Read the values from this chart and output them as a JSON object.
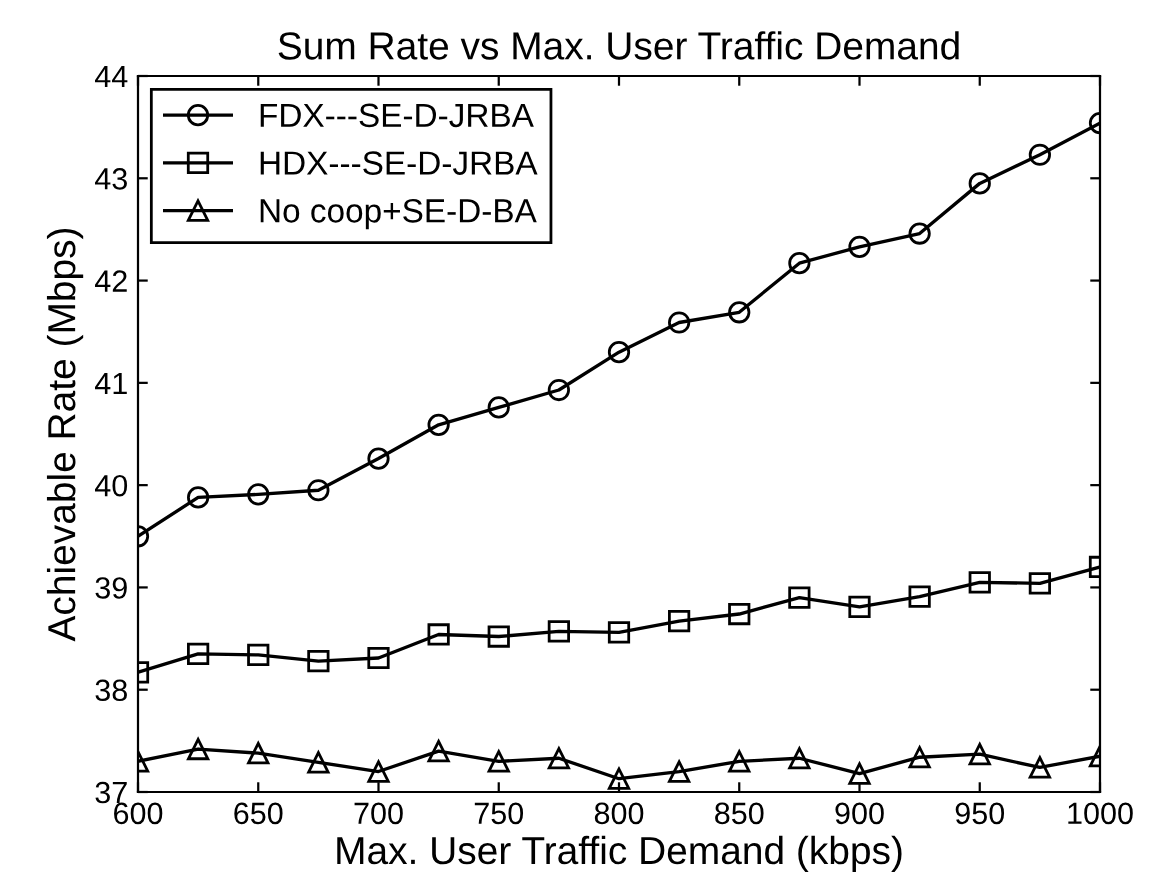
{
  "chart_data": {
    "type": "line",
    "title": "Sum Rate vs Max. User Traffic Demand",
    "xlabel": "Max. User Traffic Demand (kbps)",
    "ylabel": "Achievable Rate (Mbps)",
    "x": [
      600,
      625,
      650,
      675,
      700,
      725,
      750,
      775,
      800,
      825,
      850,
      875,
      900,
      925,
      950,
      975,
      1000
    ],
    "series": [
      {
        "name": "FDX---SE-D-JRBA",
        "color": "#000000",
        "marker": "circle",
        "values": [
          39.5,
          39.88,
          39.91,
          39.95,
          40.26,
          40.59,
          40.76,
          40.93,
          41.3,
          41.59,
          41.69,
          42.17,
          42.33,
          42.46,
          42.95,
          43.23,
          43.54
        ]
      },
      {
        "name": "HDX---SE-D-JRBA",
        "color": "#000000",
        "marker": "square",
        "values": [
          38.17,
          38.35,
          38.34,
          38.28,
          38.31,
          38.54,
          38.52,
          38.57,
          38.56,
          38.67,
          38.74,
          38.9,
          38.81,
          38.91,
          39.05,
          39.04,
          39.2
        ]
      },
      {
        "name": "No coop+SE-D-BA",
        "color": "#000000",
        "marker": "triangle",
        "values": [
          37.3,
          37.42,
          37.38,
          37.29,
          37.2,
          37.4,
          37.3,
          37.33,
          37.13,
          37.2,
          37.3,
          37.33,
          37.18,
          37.34,
          37.37,
          37.24,
          37.35
        ]
      }
    ],
    "xlim": [
      600,
      1000
    ],
    "xticks": [
      600,
      650,
      700,
      750,
      800,
      850,
      900,
      950,
      1000
    ],
    "ylim": [
      37,
      44
    ],
    "yticks": [
      37,
      38,
      39,
      40,
      41,
      42,
      43,
      44
    ],
    "grid": false,
    "legend": "top left",
    "line_style": "solid"
  }
}
